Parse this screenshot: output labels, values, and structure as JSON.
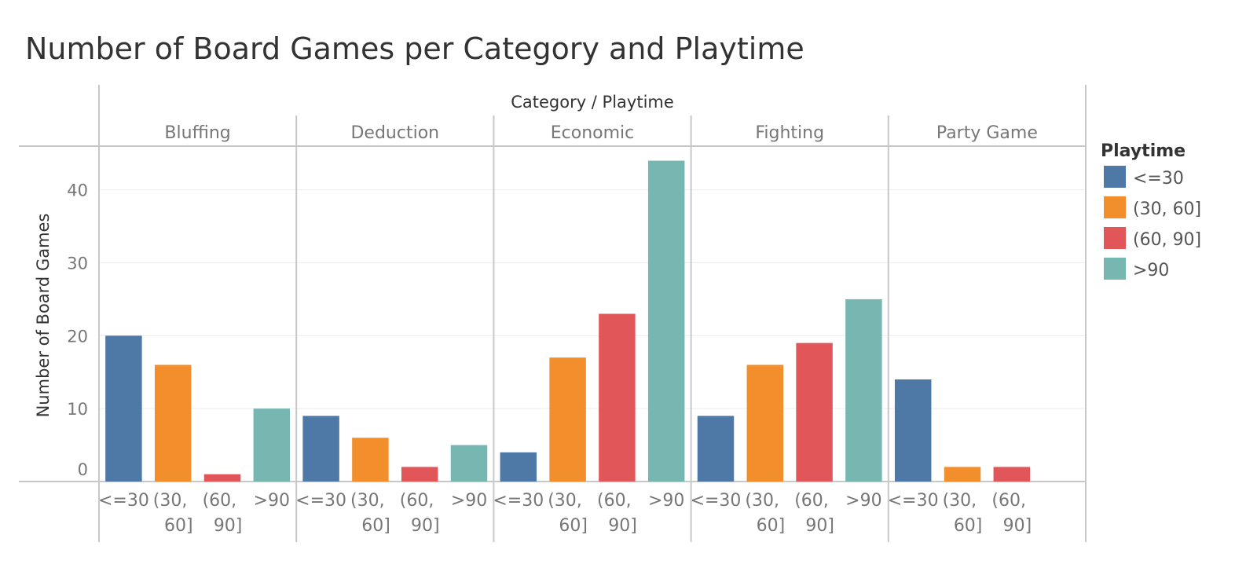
{
  "chart_data": {
    "type": "bar",
    "title": "Number of Board Games per Category and Playtime",
    "column_header": "Category / Playtime",
    "ylabel": "Number of Board Games",
    "ylim": [
      0,
      46
    ],
    "yticks": [
      0,
      10,
      20,
      30,
      40
    ],
    "legend": {
      "title": "Playtime",
      "placement": "right",
      "items": [
        {
          "label": "<=30",
          "color": "#4e79a7"
        },
        {
          "label": "(30, 60]",
          "color": "#f28e2b"
        },
        {
          "label": "(60, 90]",
          "color": "#e15759"
        },
        {
          "label": ">90",
          "color": "#76b7b2"
        }
      ]
    },
    "x_tick_labels": [
      {
        "key": "<=30",
        "lines": [
          "<=30"
        ]
      },
      {
        "key": "(30, 60]",
        "lines": [
          "(30,",
          "60]"
        ]
      },
      {
        "key": "(60, 90]",
        "lines": [
          "(60,",
          "90]"
        ]
      },
      {
        "key": ">90",
        "lines": [
          ">90"
        ]
      }
    ],
    "categories": [
      {
        "name": "Bluffing",
        "playtimes": [
          "<=30",
          "(30, 60]",
          "(60, 90]",
          ">90"
        ],
        "values": [
          20,
          16,
          1,
          10
        ]
      },
      {
        "name": "Deduction",
        "playtimes": [
          "<=30",
          "(30, 60]",
          "(60, 90]",
          ">90"
        ],
        "values": [
          9,
          6,
          2,
          5
        ]
      },
      {
        "name": "Economic",
        "playtimes": [
          "<=30",
          "(30, 60]",
          "(60, 90]",
          ">90"
        ],
        "values": [
          4,
          17,
          23,
          44
        ]
      },
      {
        "name": "Fighting",
        "playtimes": [
          "<=30",
          "(30, 60]",
          "(60, 90]",
          ">90"
        ],
        "values": [
          9,
          16,
          19,
          25
        ]
      },
      {
        "name": "Party Game",
        "playtimes": [
          "<=30",
          "(30, 60]",
          "(60, 90]"
        ],
        "values": [
          14,
          2,
          2
        ]
      }
    ],
    "grid": true
  }
}
